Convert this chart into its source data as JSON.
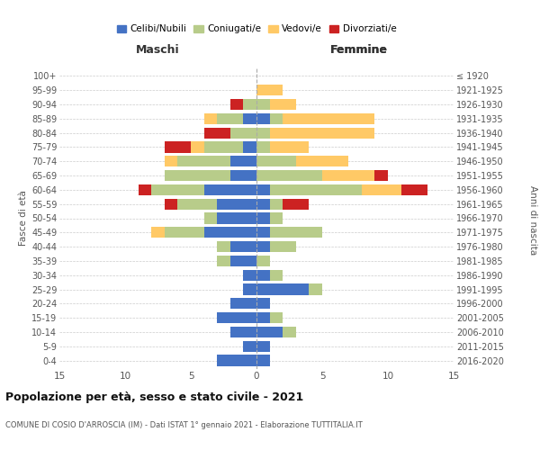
{
  "age_groups": [
    "0-4",
    "5-9",
    "10-14",
    "15-19",
    "20-24",
    "25-29",
    "30-34",
    "35-39",
    "40-44",
    "45-49",
    "50-54",
    "55-59",
    "60-64",
    "65-69",
    "70-74",
    "75-79",
    "80-84",
    "85-89",
    "90-94",
    "95-99",
    "100+"
  ],
  "birth_years": [
    "2016-2020",
    "2011-2015",
    "2006-2010",
    "2001-2005",
    "1996-2000",
    "1991-1995",
    "1986-1990",
    "1981-1985",
    "1976-1980",
    "1971-1975",
    "1966-1970",
    "1961-1965",
    "1956-1960",
    "1951-1955",
    "1946-1950",
    "1941-1945",
    "1936-1940",
    "1931-1935",
    "1926-1930",
    "1921-1925",
    "≤ 1920"
  ],
  "maschi": {
    "celibi": [
      3,
      1,
      2,
      3,
      2,
      1,
      1,
      2,
      2,
      4,
      3,
      3,
      4,
      2,
      2,
      1,
      0,
      1,
      0,
      0,
      0
    ],
    "coniugati": [
      0,
      0,
      0,
      0,
      0,
      0,
      0,
      1,
      1,
      3,
      1,
      3,
      4,
      5,
      4,
      3,
      2,
      2,
      1,
      0,
      0
    ],
    "vedovi": [
      0,
      0,
      0,
      0,
      0,
      0,
      0,
      0,
      0,
      1,
      0,
      0,
      0,
      0,
      1,
      1,
      0,
      1,
      0,
      0,
      0
    ],
    "divorziati": [
      0,
      0,
      0,
      0,
      0,
      0,
      0,
      0,
      0,
      0,
      0,
      1,
      1,
      0,
      0,
      2,
      2,
      0,
      1,
      0,
      0
    ]
  },
  "femmine": {
    "nubili": [
      1,
      1,
      2,
      1,
      1,
      4,
      1,
      0,
      1,
      1,
      1,
      1,
      1,
      0,
      0,
      0,
      0,
      1,
      0,
      0,
      0
    ],
    "coniugate": [
      0,
      0,
      1,
      1,
      0,
      1,
      1,
      1,
      2,
      4,
      1,
      1,
      7,
      5,
      3,
      1,
      1,
      1,
      1,
      0,
      0
    ],
    "vedove": [
      0,
      0,
      0,
      0,
      0,
      0,
      0,
      0,
      0,
      0,
      0,
      0,
      3,
      4,
      4,
      3,
      8,
      7,
      2,
      2,
      0
    ],
    "divorziate": [
      0,
      0,
      0,
      0,
      0,
      0,
      0,
      0,
      0,
      0,
      0,
      2,
      2,
      1,
      0,
      0,
      0,
      0,
      0,
      0,
      0
    ]
  },
  "colors": {
    "celibi_nubili": "#4472c4",
    "coniugati": "#b8cc8a",
    "vedovi": "#ffc966",
    "divorziati": "#cc2222"
  },
  "title": "Popolazione per età, sesso e stato civile - 2021",
  "subtitle": "COMUNE DI COSIO D'ARROSCIA (IM) - Dati ISTAT 1° gennaio 2021 - Elaborazione TUTTITALIA.IT",
  "ylabel_left": "Fasce di età",
  "ylabel_right": "Anni di nascita",
  "xlabel_maschi": "Maschi",
  "xlabel_femmine": "Femmine",
  "xlim": 15,
  "legend_labels": [
    "Celibi/Nubili",
    "Coniugati/e",
    "Vedovi/e",
    "Divorziati/e"
  ],
  "background_color": "#ffffff",
  "grid_color": "#cccccc"
}
